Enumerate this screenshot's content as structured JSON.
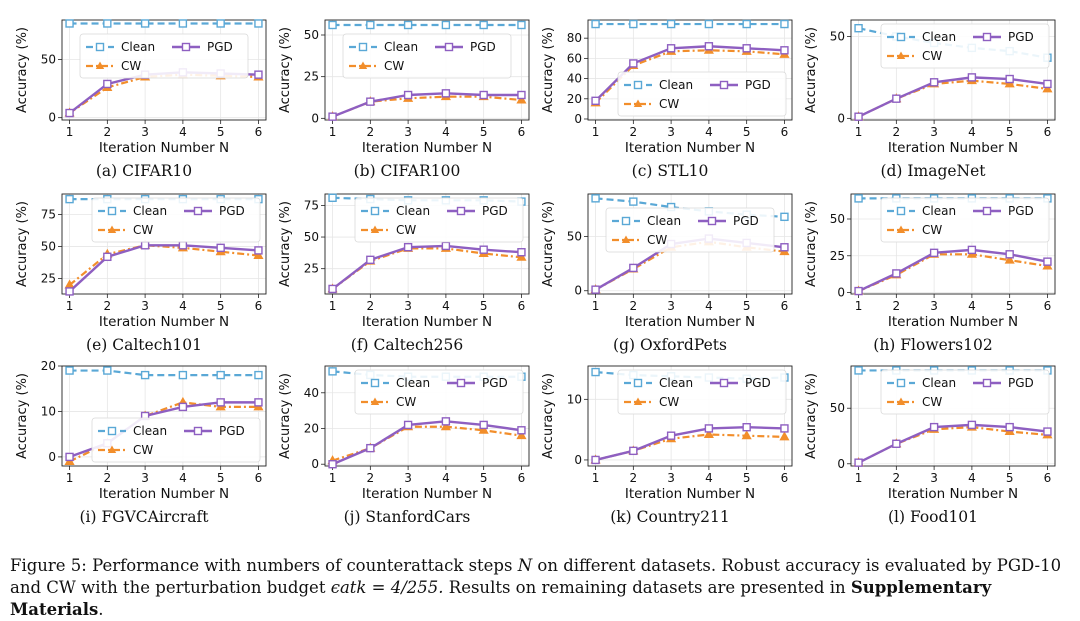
{
  "figure": {
    "caption_label": "Figure 5:",
    "caption_main": "Performance with numbers of counterattack steps",
    "caption_var": "N",
    "caption_mid": "on different datasets. Robust accuracy is evaluated by PGD-10 and CW with the perturbation budget",
    "caption_eps": "ϵatk = 4/255.",
    "caption_tail": "Results on remaining datasets are presented in",
    "caption_bold": "Supplementary Materials",
    "caption_end": "."
  },
  "colors": {
    "clean": "#5aa8d6",
    "cw": "#f28e2b",
    "pgd": "#8e5fc1",
    "grid": "#e6e6e6"
  },
  "chart_data": [
    {
      "type": "line",
      "title": "CIFAR10",
      "label": "(a)",
      "xlabel": "Iteration Number N",
      "ylabel": "Accuracy (%)",
      "x": [
        1,
        2,
        3,
        4,
        5,
        6
      ],
      "ylim": [
        -2,
        84
      ],
      "yticks": [
        0,
        50
      ],
      "legend": "middle",
      "series": [
        {
          "name": "Clean",
          "values": [
            81,
            81,
            81,
            81,
            81,
            81
          ]
        },
        {
          "name": "CW",
          "values": [
            4,
            26,
            35,
            37,
            36,
            35
          ]
        },
        {
          "name": "PGD",
          "values": [
            4,
            29,
            37,
            39,
            38,
            37
          ]
        }
      ]
    },
    {
      "type": "line",
      "title": "CIFAR100",
      "label": "(b)",
      "xlabel": "Iteration Number N",
      "ylabel": "Accuracy (%)",
      "x": [
        1,
        2,
        3,
        4,
        5,
        6
      ],
      "ylim": [
        -1,
        59
      ],
      "yticks": [
        0,
        25,
        50
      ],
      "legend": "middle",
      "series": [
        {
          "name": "Clean",
          "values": [
            56,
            56,
            56,
            56,
            56,
            56
          ]
        },
        {
          "name": "CW",
          "values": [
            1,
            10,
            12,
            13,
            13,
            11
          ]
        },
        {
          "name": "PGD",
          "values": [
            1,
            10,
            14,
            15,
            14,
            14
          ]
        }
      ]
    },
    {
      "type": "line",
      "title": "STL10",
      "label": "(c)",
      "xlabel": "Iteration Number N",
      "ylabel": "Accuracy (%)",
      "x": [
        1,
        2,
        3,
        4,
        5,
        6
      ],
      "ylim": [
        -1,
        98
      ],
      "yticks": [
        0,
        20,
        40,
        60,
        80
      ],
      "legend": "lower-right",
      "series": [
        {
          "name": "Clean",
          "values": [
            94,
            94,
            94,
            94,
            94,
            94
          ]
        },
        {
          "name": "CW",
          "values": [
            16,
            53,
            67,
            68,
            67,
            64
          ]
        },
        {
          "name": "PGD",
          "values": [
            18,
            55,
            70,
            72,
            70,
            68
          ]
        }
      ]
    },
    {
      "type": "line",
      "title": "ImageNet",
      "label": "(d)",
      "xlabel": "Iteration Number N",
      "ylabel": "Accuracy (%)",
      "x": [
        1,
        2,
        3,
        4,
        5,
        6
      ],
      "ylim": [
        -1,
        60
      ],
      "yticks": [
        0,
        50
      ],
      "legend": "upper-right",
      "series": [
        {
          "name": "Clean",
          "values": [
            55,
            50,
            46,
            43,
            41,
            37
          ]
        },
        {
          "name": "CW",
          "values": [
            1,
            12,
            21,
            23,
            21,
            18
          ]
        },
        {
          "name": "PGD",
          "values": [
            1,
            12,
            22,
            25,
            24,
            21
          ]
        }
      ]
    },
    {
      "type": "line",
      "title": "Caltech101",
      "label": "(e)",
      "xlabel": "Iteration Number N",
      "ylabel": "Accuracy (%)",
      "x": [
        1,
        2,
        3,
        4,
        5,
        6
      ],
      "ylim": [
        13,
        91
      ],
      "yticks": [
        25,
        50,
        75
      ],
      "legend": "upper-right",
      "series": [
        {
          "name": "Clean",
          "values": [
            87,
            87,
            87,
            87,
            87,
            87
          ]
        },
        {
          "name": "CW",
          "values": [
            20,
            44,
            51,
            49,
            46,
            43
          ]
        },
        {
          "name": "PGD",
          "values": [
            15,
            42,
            51,
            51,
            49,
            47
          ]
        }
      ]
    },
    {
      "type": "line",
      "title": "Caltech256",
      "label": "(f)",
      "xlabel": "Iteration Number N",
      "ylabel": "Accuracy (%)",
      "x": [
        1,
        2,
        3,
        4,
        5,
        6
      ],
      "ylim": [
        5,
        84
      ],
      "yticks": [
        25,
        50,
        75
      ],
      "legend": "upper-right",
      "series": [
        {
          "name": "Clean",
          "values": [
            81,
            80,
            79,
            79,
            79,
            78
          ]
        },
        {
          "name": "CW",
          "values": [
            9,
            31,
            41,
            41,
            37,
            34
          ]
        },
        {
          "name": "PGD",
          "values": [
            9,
            32,
            42,
            43,
            40,
            38
          ]
        }
      ]
    },
    {
      "type": "line",
      "title": "OxfordPets",
      "label": "(g)",
      "xlabel": "Iteration Number N",
      "ylabel": "Accuracy (%)",
      "x": [
        1,
        2,
        3,
        4,
        5,
        6
      ],
      "ylim": [
        -3,
        89
      ],
      "yticks": [
        0,
        50
      ],
      "legend": "middle",
      "series": [
        {
          "name": "Clean",
          "values": [
            85,
            82,
            77,
            73,
            70,
            68
          ]
        },
        {
          "name": "CW",
          "values": [
            1,
            20,
            40,
            45,
            40,
            36
          ]
        },
        {
          "name": "PGD",
          "values": [
            1,
            21,
            43,
            48,
            44,
            40
          ]
        }
      ]
    },
    {
      "type": "line",
      "title": "Flowers102",
      "label": "(h)",
      "xlabel": "Iteration Number N",
      "ylabel": "Accuracy (%)",
      "x": [
        1,
        2,
        3,
        4,
        5,
        6
      ],
      "ylim": [
        -1,
        67
      ],
      "yticks": [
        0,
        25,
        50
      ],
      "legend": "upper-right",
      "series": [
        {
          "name": "Clean",
          "values": [
            64,
            64,
            64,
            64,
            64,
            64
          ]
        },
        {
          "name": "CW",
          "values": [
            1,
            12,
            26,
            26,
            22,
            18
          ]
        },
        {
          "name": "PGD",
          "values": [
            1,
            13,
            27,
            29,
            26,
            21
          ]
        }
      ]
    },
    {
      "type": "line",
      "title": "FGVCAircraft",
      "label": "(i)",
      "xlabel": "Iteration Number N",
      "ylabel": "Accuracy (%)",
      "x": [
        1,
        2,
        3,
        4,
        5,
        6
      ],
      "ylim": [
        -2,
        20
      ],
      "yticks": [
        0,
        10,
        20
      ],
      "legend": "lower-right",
      "series": [
        {
          "name": "Clean",
          "values": [
            19,
            19,
            18,
            18,
            18,
            18
          ]
        },
        {
          "name": "CW",
          "values": [
            -1,
            3,
            9,
            12,
            11,
            11
          ]
        },
        {
          "name": "PGD",
          "values": [
            0,
            3,
            9,
            11,
            12,
            12
          ]
        }
      ]
    },
    {
      "type": "line",
      "title": "StanfordCars",
      "label": "(j)",
      "xlabel": "Iteration Number N",
      "ylabel": "Accuracy (%)",
      "x": [
        1,
        2,
        3,
        4,
        5,
        6
      ],
      "ylim": [
        -1,
        55
      ],
      "yticks": [
        0,
        20,
        40
      ],
      "legend": "upper-right",
      "series": [
        {
          "name": "Clean",
          "values": [
            52,
            50,
            49,
            49,
            49,
            49
          ]
        },
        {
          "name": "CW",
          "values": [
            2,
            9,
            21,
            21,
            19,
            16
          ]
        },
        {
          "name": "PGD",
          "values": [
            0,
            9,
            22,
            24,
            22,
            19
          ]
        }
      ]
    },
    {
      "type": "line",
      "title": "Country211",
      "label": "(k)",
      "xlabel": "Iteration Number N",
      "ylabel": "Accuracy (%)",
      "x": [
        1,
        2,
        3,
        4,
        5,
        6
      ],
      "ylim": [
        -1,
        15.5
      ],
      "yticks": [
        0,
        10
      ],
      "legend": "upper-right",
      "series": [
        {
          "name": "Clean",
          "values": [
            14.5,
            14,
            13.8,
            13.6,
            13.4,
            13.6
          ]
        },
        {
          "name": "CW",
          "values": [
            0,
            1.5,
            3.5,
            4.2,
            4,
            3.8
          ]
        },
        {
          "name": "PGD",
          "values": [
            0,
            1.5,
            4,
            5.2,
            5.4,
            5.2
          ]
        }
      ]
    },
    {
      "type": "line",
      "title": "Food101",
      "label": "(l)",
      "xlabel": "Iteration Number N",
      "ylabel": "Accuracy (%)",
      "x": [
        1,
        2,
        3,
        4,
        5,
        6
      ],
      "ylim": [
        -2,
        88
      ],
      "yticks": [
        0,
        50
      ],
      "legend": "upper-right",
      "series": [
        {
          "name": "Clean",
          "values": [
            84,
            84,
            84,
            84,
            84,
            84
          ]
        },
        {
          "name": "CW",
          "values": [
            1,
            18,
            31,
            33,
            29,
            26
          ]
        },
        {
          "name": "PGD",
          "values": [
            1,
            18,
            33,
            35,
            33,
            29
          ]
        }
      ]
    }
  ]
}
